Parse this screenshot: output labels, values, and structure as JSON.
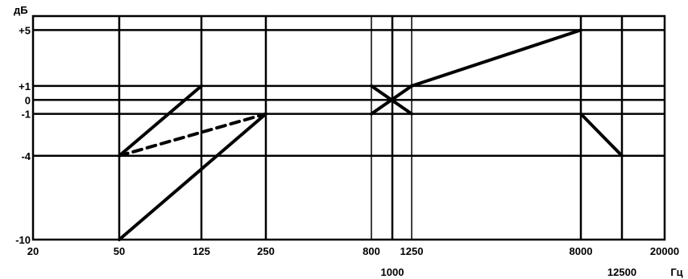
{
  "chart_data": {
    "type": "line",
    "y_unit": "дБ",
    "x_unit": "Гц",
    "x_ticks": [
      {
        "value": 20,
        "label": "20",
        "row": "top"
      },
      {
        "value": 50,
        "label": "50",
        "row": "top"
      },
      {
        "value": 125,
        "label": "125",
        "row": "top"
      },
      {
        "value": 250,
        "label": "250",
        "row": "top"
      },
      {
        "value": 800,
        "label": "800",
        "row": "top"
      },
      {
        "value": 1000,
        "label": "1000",
        "row": "bottom"
      },
      {
        "value": 1250,
        "label": "1250",
        "row": "top"
      },
      {
        "value": 8000,
        "label": "8000",
        "row": "top"
      },
      {
        "value": 12500,
        "label": "12500",
        "row": "bottom"
      },
      {
        "value": 20000,
        "label": "20000",
        "row": "top"
      }
    ],
    "y_ticks": [
      {
        "value": 5,
        "label": "+5"
      },
      {
        "value": 1,
        "label": "+1"
      },
      {
        "value": 0,
        "label": "0"
      },
      {
        "value": -1,
        "label": "-1"
      },
      {
        "value": -4,
        "label": "-4"
      },
      {
        "value": -10,
        "label": "-10"
      }
    ],
    "x_gridlines": [
      50,
      125,
      250,
      800,
      1000,
      1250,
      8000,
      12500
    ],
    "y_gridlines": [
      5,
      1,
      0,
      -1,
      -4
    ],
    "ylim": [
      -10,
      6
    ],
    "segments": [
      {
        "from": [
          50,
          -4
        ],
        "to": [
          125,
          1
        ],
        "style": "solid"
      },
      {
        "from": [
          50,
          -10
        ],
        "to": [
          250,
          -1
        ],
        "style": "solid"
      },
      {
        "from": [
          50,
          -4
        ],
        "to": [
          250,
          -1
        ],
        "style": "dashed"
      },
      {
        "from": [
          800,
          -1
        ],
        "to": [
          1250,
          1
        ],
        "style": "solid"
      },
      {
        "from": [
          800,
          1
        ],
        "to": [
          1250,
          -1
        ],
        "style": "solid"
      },
      {
        "from": [
          1250,
          1
        ],
        "to": [
          8000,
          5
        ],
        "style": "solid"
      },
      {
        "from": [
          8000,
          -1
        ],
        "to": [
          12500,
          -4
        ],
        "style": "solid"
      }
    ]
  }
}
